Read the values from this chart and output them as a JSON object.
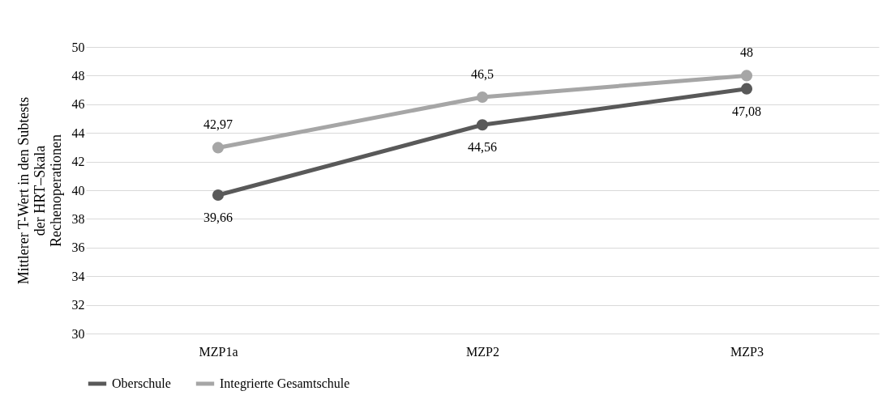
{
  "chart_data": {
    "type": "line",
    "ylabel": "Mittlerer T-Wert in den Subtests\nder HRT–Skala\nRechenoperationen",
    "categories": [
      "MZP1a",
      "MZP2",
      "MZP3"
    ],
    "series": [
      {
        "name": "Oberschule",
        "color": "#595959",
        "values": [
          39.66,
          44.56,
          47.08
        ],
        "value_labels": [
          "39,66",
          "44,56",
          "47,08"
        ]
      },
      {
        "name": "Integrierte Gesamtschule",
        "color": "#a6a6a6",
        "values": [
          42.97,
          46.5,
          48
        ],
        "value_labels": [
          "42,97",
          "46,5",
          "48"
        ]
      }
    ],
    "ylim": [
      30,
      50
    ],
    "yticks": [
      30,
      32,
      34,
      36,
      38,
      40,
      42,
      44,
      46,
      48,
      50
    ],
    "grid": "y",
    "legend": "bottom",
    "marker": "circle",
    "line_style": "solid"
  }
}
